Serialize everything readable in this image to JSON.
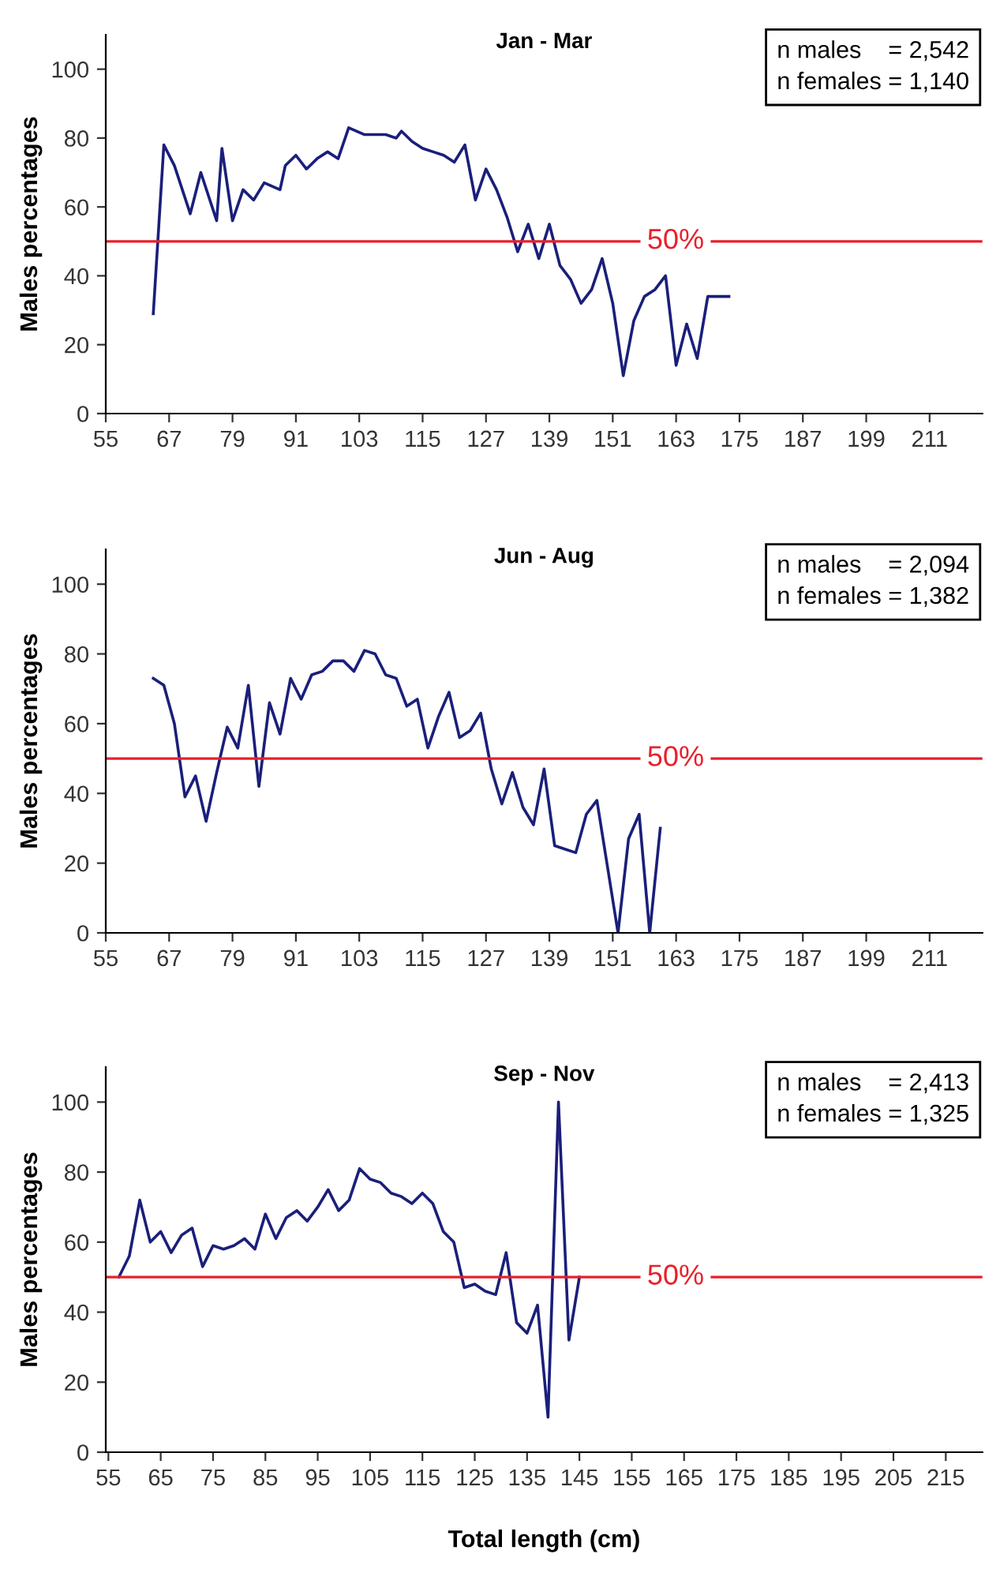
{
  "chart_data": [
    {
      "type": "line",
      "title": "Jan - Mar",
      "ylabel": "Males percentages",
      "xlim": [
        55,
        221
      ],
      "xticks": [
        55,
        67,
        79,
        91,
        103,
        115,
        127,
        139,
        151,
        163,
        175,
        187,
        199,
        211
      ],
      "ylim": [
        0,
        110
      ],
      "yticks": [
        0,
        20,
        40,
        60,
        80,
        100
      ],
      "grid": false,
      "legend": false,
      "marker": "none",
      "line_style": "solid",
      "annotations": [
        "n males    = 2,542",
        "n females = 1,140"
      ],
      "ref_lines": [
        {
          "axis": "y",
          "value": 50,
          "label": "50%",
          "color": "#e8202a"
        }
      ],
      "series": [
        {
          "color": "#1a1f7a",
          "x": [
            64,
            66,
            68,
            71,
            73,
            76,
            77,
            79,
            81,
            83,
            85,
            88,
            89,
            91,
            93,
            95,
            97,
            99,
            101,
            104,
            105,
            108,
            110,
            111,
            113,
            115,
            117,
            119,
            121,
            123,
            125,
            127,
            129,
            131,
            133,
            135,
            137,
            139,
            141,
            143,
            145,
            147,
            149,
            151,
            153,
            155,
            157,
            159,
            161,
            163,
            165,
            167,
            169,
            171,
            173
          ],
          "values": [
            29,
            78,
            72,
            58,
            70,
            56,
            77,
            56,
            65,
            62,
            67,
            65,
            72,
            75,
            71,
            74,
            76,
            74,
            83,
            81,
            81,
            81,
            80,
            82,
            79,
            77,
            76,
            75,
            73,
            78,
            62,
            71,
            65,
            57,
            47,
            55,
            45,
            55,
            43,
            39,
            32,
            36,
            45,
            32,
            11,
            27,
            34,
            36,
            40,
            14,
            26,
            16,
            34,
            34,
            34
          ]
        }
      ]
    },
    {
      "type": "line",
      "title": "Jun - Aug",
      "ylabel": "Males percentages",
      "xlim": [
        55,
        221
      ],
      "xticks": [
        55,
        67,
        79,
        91,
        103,
        115,
        127,
        139,
        151,
        163,
        175,
        187,
        199,
        211
      ],
      "ylim": [
        0,
        110
      ],
      "yticks": [
        0,
        20,
        40,
        60,
        80,
        100
      ],
      "grid": false,
      "legend": false,
      "marker": "none",
      "line_style": "solid",
      "annotations": [
        "n males    = 2,094",
        "n females = 1,382"
      ],
      "ref_lines": [
        {
          "axis": "y",
          "value": 50,
          "label": "50%",
          "color": "#e8202a"
        }
      ],
      "series": [
        {
          "color": "#1a1f7a",
          "x": [
            64,
            66,
            68,
            70,
            72,
            74,
            76,
            78,
            80,
            82,
            84,
            86,
            88,
            90,
            92,
            94,
            96,
            98,
            100,
            102,
            104,
            106,
            108,
            110,
            112,
            114,
            116,
            118,
            120,
            122,
            124,
            126,
            128,
            130,
            132,
            134,
            136,
            138,
            140,
            142,
            144,
            146,
            148,
            150,
            152,
            154,
            156,
            158,
            160
          ],
          "values": [
            73,
            71,
            60,
            39,
            45,
            32,
            46,
            59,
            53,
            71,
            42,
            66,
            57,
            73,
            67,
            74,
            75,
            78,
            78,
            75,
            81,
            80,
            74,
            73,
            65,
            67,
            53,
            62,
            69,
            56,
            58,
            63,
            47,
            37,
            46,
            36,
            31,
            47,
            25,
            24,
            23,
            34,
            38,
            19,
            0,
            27,
            34,
            0,
            30
          ]
        }
      ]
    },
    {
      "type": "line",
      "title": "Sep - Nov",
      "ylabel": "Males percentages",
      "xlabel": "Total length (cm)",
      "xlim": [
        54.5,
        222
      ],
      "xticks": [
        55,
        65,
        75,
        85,
        95,
        105,
        115,
        125,
        135,
        145,
        155,
        165,
        175,
        185,
        195,
        205,
        215
      ],
      "ylim": [
        0,
        110
      ],
      "yticks": [
        0,
        20,
        40,
        60,
        80,
        100
      ],
      "grid": false,
      "legend": false,
      "marker": "none",
      "line_style": "solid",
      "annotations": [
        "n males    = 2,413",
        "n females = 1,325"
      ],
      "ref_lines": [
        {
          "axis": "y",
          "value": 50,
          "label": "50%",
          "color": "#e8202a"
        }
      ],
      "series": [
        {
          "color": "#1a1f7a",
          "x": [
            57,
            59,
            61,
            63,
            65,
            67,
            69,
            71,
            73,
            75,
            77,
            79,
            81,
            83,
            85,
            87,
            89,
            91,
            93,
            95,
            97,
            99,
            101,
            103,
            105,
            107,
            109,
            111,
            113,
            115,
            117,
            119,
            121,
            123,
            125,
            127,
            129,
            131,
            133,
            135,
            137,
            139,
            141,
            143,
            145
          ],
          "values": [
            50,
            56,
            72,
            60,
            63,
            57,
            62,
            64,
            53,
            59,
            58,
            59,
            61,
            58,
            68,
            61,
            67,
            69,
            66,
            70,
            75,
            69,
            72,
            81,
            78,
            77,
            74,
            73,
            71,
            74,
            71,
            63,
            60,
            47,
            48,
            46,
            45,
            57,
            37,
            34,
            42,
            10,
            100,
            32,
            50
          ]
        }
      ]
    }
  ]
}
